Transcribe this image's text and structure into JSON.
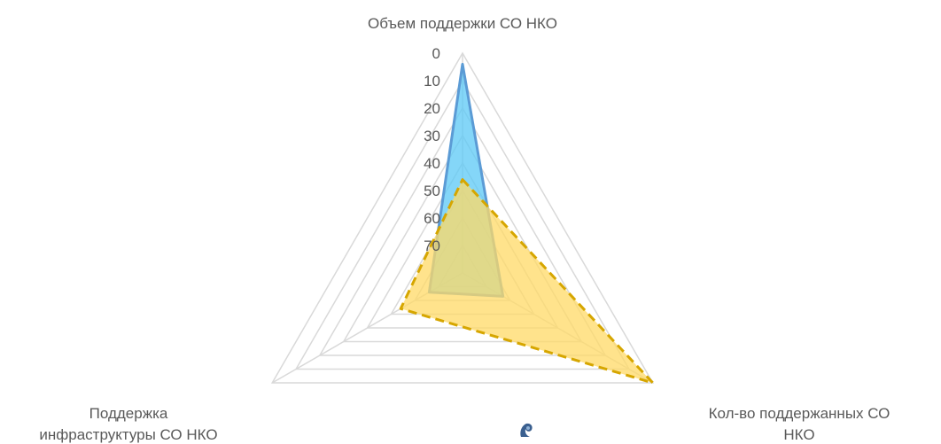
{
  "chart_data": {
    "type": "radar",
    "categories": [
      [
        "Объем поддержки СО НКО"
      ],
      [
        "Кол-во поддержанных СО",
        "НКО"
      ],
      [
        "Поддержка",
        "инфраструктуры СО НКО"
      ]
    ],
    "r_ticks": [
      0,
      10,
      20,
      30,
      40,
      50,
      60,
      70
    ],
    "r_axis": "reversed",
    "rlim": [
      0,
      80
    ],
    "series": [
      {
        "values": [
          4,
          63,
          66
        ],
        "fill": "#5bc8f5",
        "stroke": "#5b9bd5",
        "line_style": "solid"
      },
      {
        "values": [
          46,
          0,
          54
        ],
        "fill": "#ffd966",
        "stroke": "#d6a600",
        "line_style": "dashed"
      }
    ],
    "grid": true,
    "gridline_color": "#d9d9d9"
  }
}
